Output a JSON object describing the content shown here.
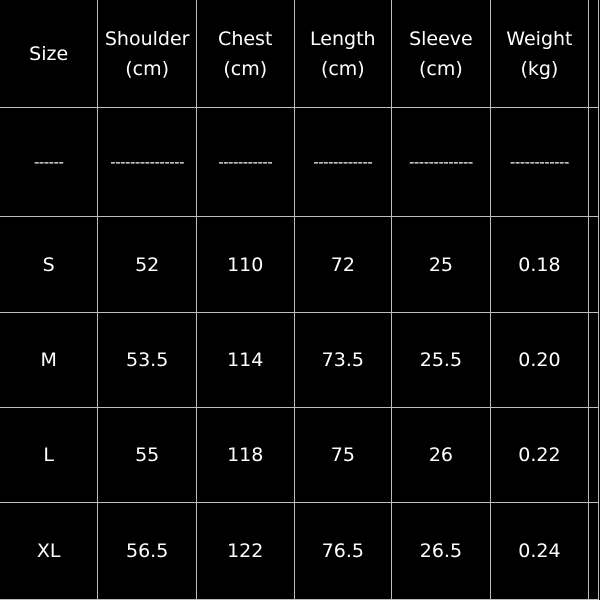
{
  "table": {
    "headers": [
      [
        "Size",
        ""
      ],
      [
        "Shoulder",
        "(cm)"
      ],
      [
        "Chest",
        "(cm)"
      ],
      [
        "Length",
        "(cm)"
      ],
      [
        "Sleeve",
        "(cm)"
      ],
      [
        "Weight",
        "(kg)"
      ]
    ],
    "separators": [
      "------",
      "---------------",
      "-----------",
      "------------",
      "-------------",
      "------------"
    ],
    "rows": [
      [
        "S",
        "52",
        "110",
        "72",
        "25",
        "0.18"
      ],
      [
        "M",
        "53.5",
        "114",
        "73.5",
        "25.5",
        "0.20"
      ],
      [
        "L",
        "55",
        "118",
        "75",
        "26",
        "0.22"
      ],
      [
        "XL",
        "56.5",
        "122",
        "76.5",
        "26.5",
        "0.24"
      ]
    ]
  }
}
